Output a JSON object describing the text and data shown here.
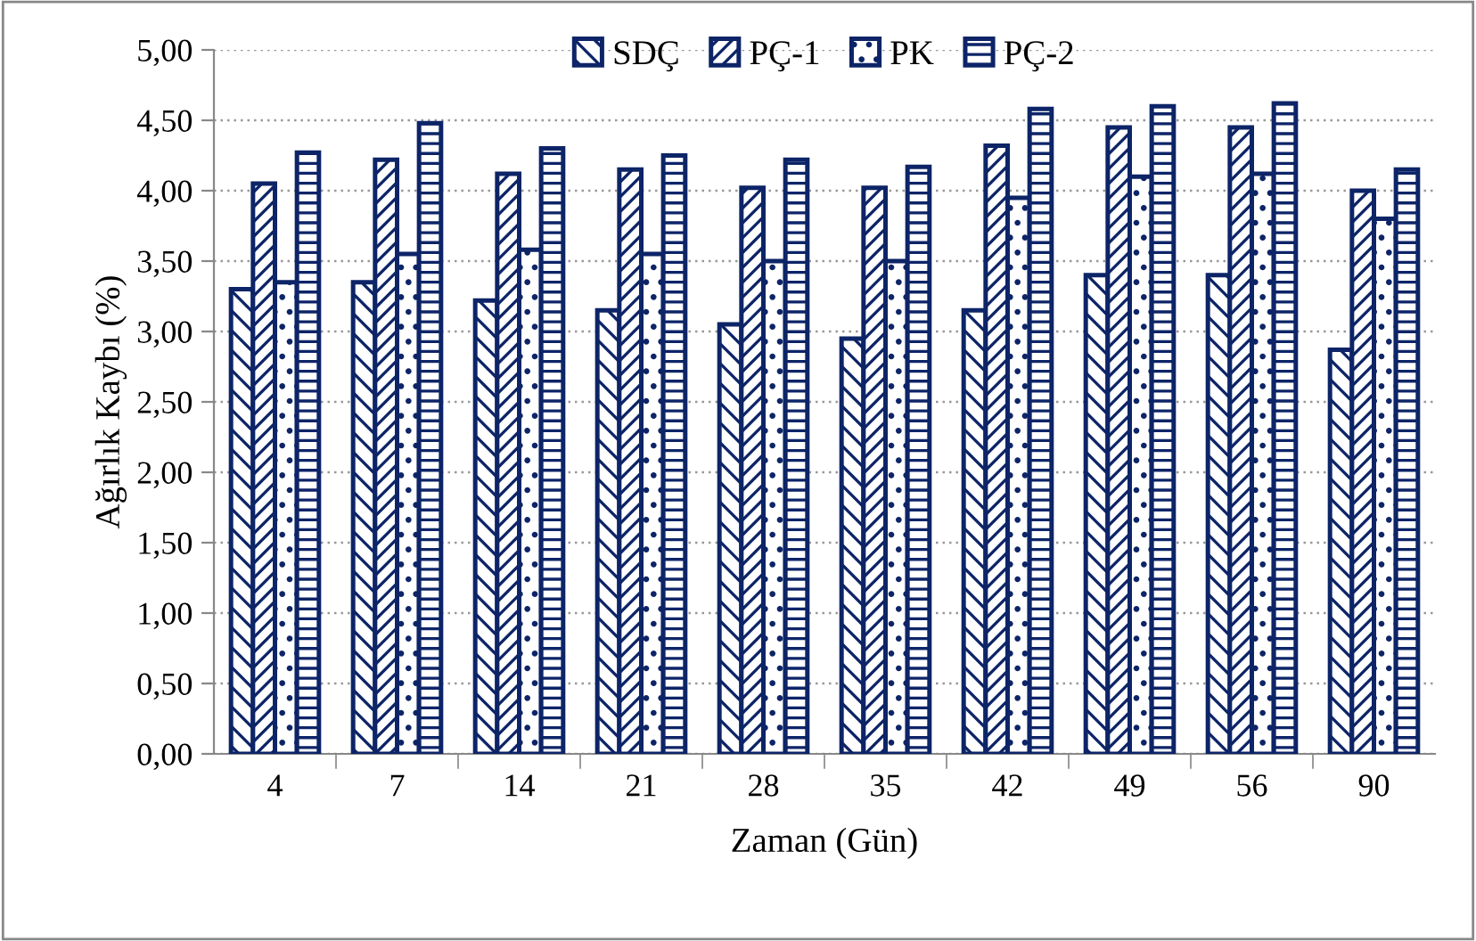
{
  "chart_data": {
    "type": "bar",
    "xlabel": "Zaman (Gün)",
    "ylabel": "Ağırlık Kaybı (%)",
    "categories": [
      "4",
      "7",
      "14",
      "21",
      "28",
      "35",
      "42",
      "49",
      "56",
      "90"
    ],
    "series": [
      {
        "name": "SDÇ",
        "color": "#0d2467",
        "values": [
          3.3,
          3.35,
          3.22,
          3.15,
          3.05,
          2.95,
          3.15,
          3.4,
          3.4,
          2.87
        ]
      },
      {
        "name": "PÇ-1",
        "color": "#0d2467",
        "values": [
          4.05,
          4.22,
          4.12,
          4.15,
          4.02,
          4.02,
          4.32,
          4.45,
          4.45,
          4.0
        ]
      },
      {
        "name": "PK",
        "color": "#0d2467",
        "values": [
          3.35,
          3.55,
          3.58,
          3.55,
          3.5,
          3.5,
          3.95,
          4.1,
          4.12,
          3.8
        ]
      },
      {
        "name": "PÇ-2",
        "color": "#0d2467",
        "values": [
          4.27,
          4.48,
          4.3,
          4.25,
          4.22,
          4.17,
          4.58,
          4.6,
          4.62,
          4.15
        ]
      }
    ],
    "ylim": [
      0,
      5
    ],
    "yticks": [
      {
        "value": 0,
        "label": "0,00"
      },
      {
        "value": 0.5,
        "label": "0,50"
      },
      {
        "value": 1,
        "label": "1,00"
      },
      {
        "value": 1.5,
        "label": "1,50"
      },
      {
        "value": 2,
        "label": "2,00"
      },
      {
        "value": 2.5,
        "label": "2,50"
      },
      {
        "value": 3,
        "label": "3,00"
      },
      {
        "value": 3.5,
        "label": "3,50"
      },
      {
        "value": 4,
        "label": "4,00"
      },
      {
        "value": 4.5,
        "label": "4,50"
      },
      {
        "value": 5,
        "label": "5,00"
      }
    ],
    "grid": "y",
    "legend": "top"
  }
}
